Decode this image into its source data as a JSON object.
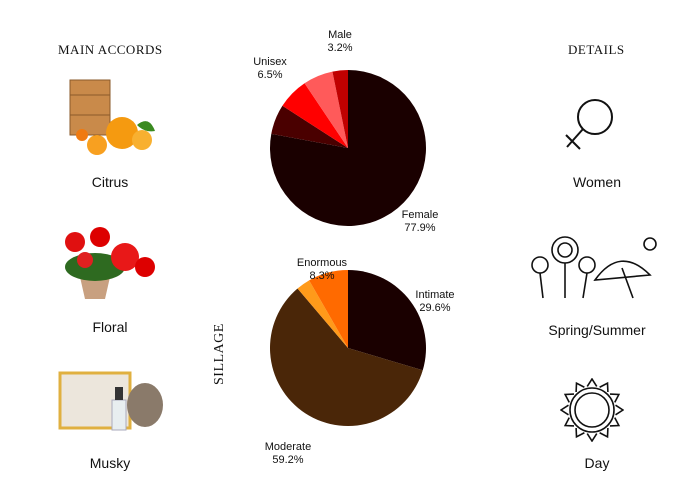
{
  "main_accords": {
    "title": "MAIN ACCORDS",
    "items": [
      {
        "label": "Citrus"
      },
      {
        "label": "Floral"
      },
      {
        "label": "Musky"
      }
    ]
  },
  "details": {
    "title": "DETAILS",
    "items": [
      {
        "label": "Women",
        "icon": "venus-icon"
      },
      {
        "label": "Spring/Summer",
        "icon": "flowers-umbrella-icon"
      },
      {
        "label": "Day",
        "icon": "sun-icon"
      }
    ]
  },
  "chart_data": [
    {
      "type": "pie",
      "title": "",
      "slices": [
        {
          "label": "Female",
          "value": 77.9,
          "display": "77.9%",
          "color": "#1a0000"
        },
        {
          "label": "",
          "value": 6.2,
          "color": "#4a0000"
        },
        {
          "label": "Unisex",
          "value": 6.5,
          "display": "6.5%",
          "color": "#ff0000"
        },
        {
          "label": "",
          "value": 6.2,
          "color": "#ff5a5a"
        },
        {
          "label": "Male",
          "value": 3.2,
          "display": "3.2%",
          "color": "#c00000"
        }
      ]
    },
    {
      "type": "pie",
      "title": "SILLAGE",
      "slices": [
        {
          "label": "Intimate",
          "value": 29.6,
          "display": "29.6%",
          "color": "#1a0000"
        },
        {
          "label": "Moderate",
          "value": 59.2,
          "display": "59.2%",
          "color": "#4a2608"
        },
        {
          "label": "",
          "value": 2.9,
          "color": "#ff9a1a"
        },
        {
          "label": "Enormous",
          "value": 8.3,
          "display": "8.3%",
          "color": "#ff6a00"
        }
      ]
    }
  ]
}
